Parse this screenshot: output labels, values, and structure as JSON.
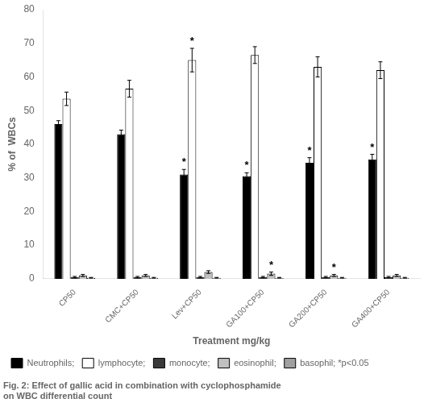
{
  "chart_data": {
    "type": "bar",
    "xlabel": "Treatment mg/kg",
    "ylabel": "% of  WBCs",
    "caption": [
      "Fig. 2: Effect of gallic acid in combination with cyclophosphamide",
      "on WBC differential count"
    ],
    "categories": [
      "CP50",
      "CMC+CP50",
      "Lev+CP50",
      "GA100+CP50",
      "GA200+CP50",
      "GA400+CP50"
    ],
    "series": [
      {
        "name": "Neutrophils;",
        "color": "#000000",
        "values": [
          46,
          43,
          31,
          30.5,
          34.5,
          35.5
        ],
        "errors": [
          1.0,
          1.2,
          1.5,
          1.0,
          1.5,
          1.5
        ]
      },
      {
        "name": "lymphocyte;",
        "color": "#ffffff",
        "values": [
          53.5,
          56.5,
          65,
          66.5,
          63,
          62
        ],
        "errors": [
          2.0,
          2.5,
          3.5,
          2.5,
          3.0,
          2.5
        ]
      },
      {
        "name": "monocyte;",
        "color": "#3a3a3a",
        "values": [
          0.5,
          0.5,
          0.5,
          0.5,
          0.5,
          0.5
        ],
        "errors": [
          0.2,
          0.2,
          0.2,
          0.2,
          0.2,
          0.2
        ]
      },
      {
        "name": "eosinophil;",
        "color": "#c0c0c0",
        "values": [
          1.0,
          1.0,
          2.0,
          1.5,
          1.0,
          1.0
        ],
        "errors": [
          0.3,
          0.3,
          0.4,
          0.5,
          0.3,
          0.3
        ]
      },
      {
        "name": "basophil; *p<0.05",
        "color": "#a0a0a0",
        "values": [
          0.3,
          0.3,
          0.3,
          0.3,
          0.3,
          0.3
        ],
        "errors": [
          0.1,
          0.1,
          0.1,
          0.1,
          0.1,
          0.1
        ]
      }
    ],
    "annotations": [
      {
        "text": "*",
        "series": "Neutrophils;",
        "category": "Lev+CP50"
      },
      {
        "text": "*",
        "series": "Neutrophils;",
        "category": "GA100+CP50"
      },
      {
        "text": "*",
        "series": "Neutrophils;",
        "category": "GA200+CP50"
      },
      {
        "text": "*",
        "series": "Neutrophils;",
        "category": "GA400+CP50"
      },
      {
        "text": "*",
        "series": "lymphocyte;",
        "category": "Lev+CP50"
      },
      {
        "text": "*",
        "series": "eosinophil;",
        "category": "GA100+CP50"
      },
      {
        "text": "*",
        "series": "eosinophil;",
        "category": "GA200+CP50"
      }
    ],
    "ylim": [
      0,
      80
    ],
    "yticks": [
      0,
      10,
      20,
      30,
      40,
      50,
      60,
      70,
      80
    ],
    "grid": false
  }
}
